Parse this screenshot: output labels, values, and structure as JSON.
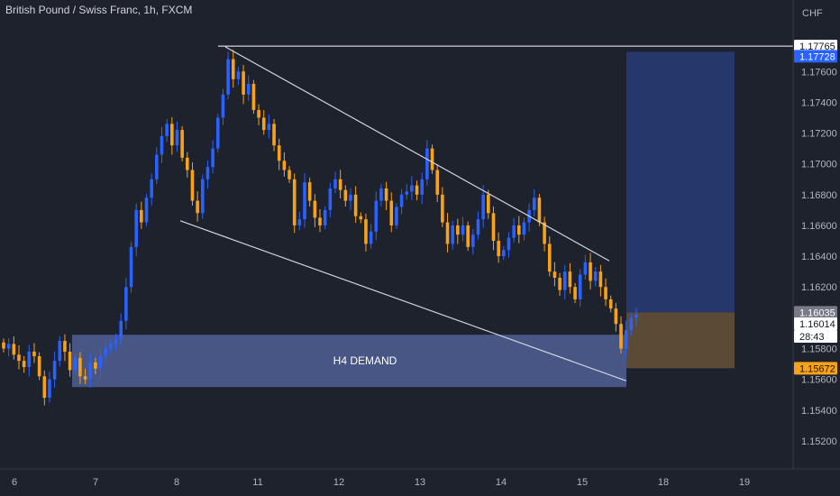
{
  "title": "British Pound / Swiss Franc, 1h, FXCM",
  "currency": "CHF",
  "zone_label": "H4 DEMAND",
  "colors": {
    "background": "#1e222d",
    "up_candle": "#2962ff",
    "down_candle": "#f7a21b",
    "demand_zone": "#4a5a8a",
    "target_zone": "#26386b",
    "stop_zone": "#5b4a36",
    "trendline": "#d1d4dc",
    "price_tag_blue": "#2962ff",
    "price_tag_orange": "#f7a21b"
  },
  "chart_data": {
    "type": "candlestick",
    "symbol": "GBPCHF",
    "ylim": [
      1.151,
      1.1783
    ],
    "y_ticks": [
      "1.17600",
      "1.17400",
      "1.17200",
      "1.17000",
      "1.16800",
      "1.16600",
      "1.16400",
      "1.16200",
      "1.15800",
      "1.15600",
      "1.15400",
      "1.15200"
    ],
    "x_ticks": [
      "6",
      "7",
      "8",
      "11",
      "12",
      "13",
      "14",
      "15",
      "18",
      "19"
    ],
    "price_tags": [
      {
        "value": "1.17765",
        "style": "white"
      },
      {
        "value": "1.17728",
        "style": "blue"
      },
      {
        "value": "1.16035",
        "style": "gray"
      },
      {
        "value": "1.16014",
        "style": "light"
      },
      {
        "value": "28:43",
        "style": "countdown"
      },
      {
        "value": "1.15672",
        "style": "orange"
      }
    ],
    "horizontal_line": 1.17765,
    "demand_zone": {
      "top": 1.1589,
      "bottom": 1.1555,
      "label": "H4 DEMAND"
    },
    "position": {
      "target": 1.17728,
      "entry": 1.16035,
      "stop": 1.15672
    },
    "channel_upper": [
      [
        1.1776,
        1.1637
      ]
    ],
    "channel_lower": [
      [
        1.1663,
        1.1559
      ]
    ],
    "price_path": [
      1.158,
      1.1583,
      1.1576,
      1.1572,
      1.1568,
      1.1578,
      1.1575,
      1.1562,
      1.1548,
      1.156,
      1.1572,
      1.1585,
      1.1578,
      1.1566,
      1.1574,
      1.1562,
      1.156,
      1.1571,
      1.1567,
      1.1575,
      1.158,
      1.1583,
      1.1586,
      1.1598,
      1.162,
      1.1646,
      1.167,
      1.1662,
      1.1678,
      1.169,
      1.1706,
      1.1718,
      1.1726,
      1.1712,
      1.1722,
      1.1704,
      1.1696,
      1.1676,
      1.1668,
      1.169,
      1.1698,
      1.171,
      1.173,
      1.1745,
      1.1768,
      1.1755,
      1.176,
      1.1745,
      1.1752,
      1.1735,
      1.173,
      1.1722,
      1.1726,
      1.1712,
      1.1702,
      1.1696,
      1.169,
      1.166,
      1.1664,
      1.1688,
      1.1676,
      1.1665,
      1.166,
      1.167,
      1.1684,
      1.169,
      1.1683,
      1.1676,
      1.168,
      1.1666,
      1.1664,
      1.1648,
      1.1656,
      1.1676,
      1.1684,
      1.1676,
      1.166,
      1.1672,
      1.168,
      1.1682,
      1.1686,
      1.168,
      1.169,
      1.171,
      1.1696,
      1.168,
      1.1662,
      1.1648,
      1.166,
      1.1654,
      1.166,
      1.1646,
      1.1654,
      1.1664,
      1.168,
      1.1668,
      1.165,
      1.164,
      1.1644,
      1.1652,
      1.166,
      1.1654,
      1.1662,
      1.167,
      1.1678,
      1.1662,
      1.1648,
      1.163,
      1.1626,
      1.1618,
      1.163,
      1.162,
      1.1612,
      1.1628,
      1.1636,
      1.1624,
      1.163,
      1.162,
      1.1612,
      1.1606,
      1.1596,
      1.158,
      1.1592,
      1.16,
      1.1602
    ]
  }
}
